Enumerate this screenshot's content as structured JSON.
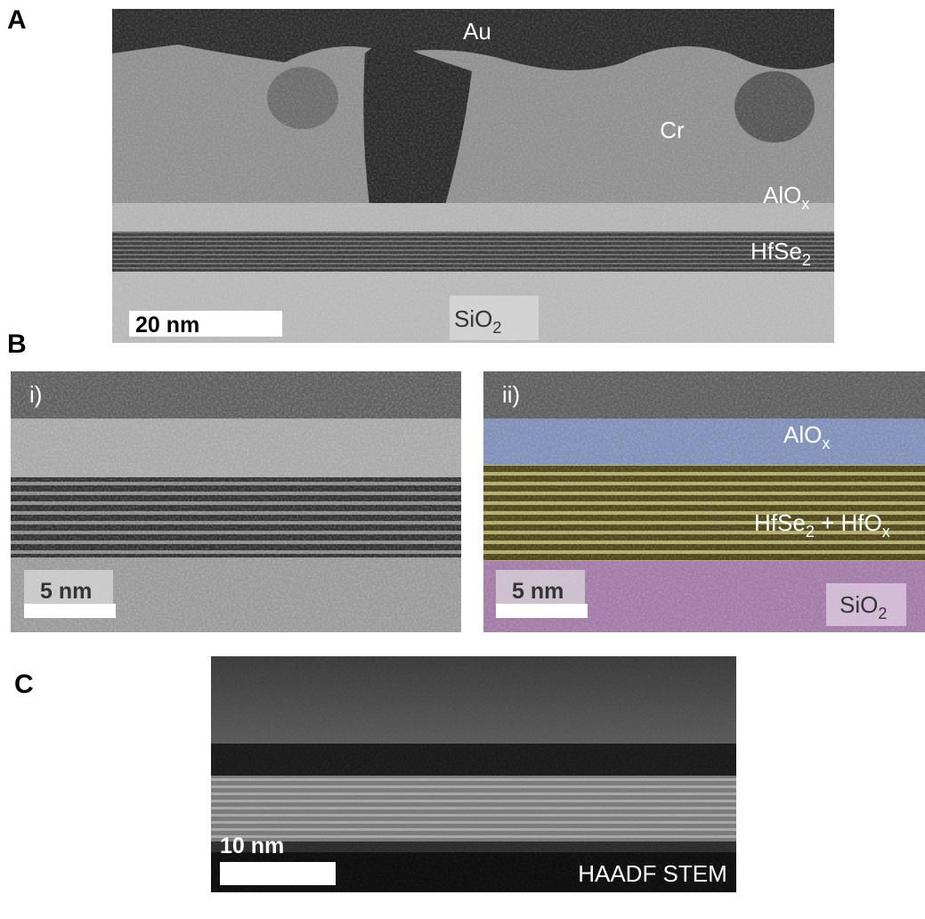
{
  "panel_a": {
    "label": "A",
    "au": "Au",
    "cr": "Cr",
    "alox": {
      "main": "AlO",
      "sub": "x"
    },
    "hfse2": {
      "main": "HfSe",
      "sub": "2"
    },
    "sio2": {
      "main": "SiO",
      "sub": "2"
    },
    "scale_bar": "20 nm"
  },
  "panel_b": {
    "label": "B",
    "i": {
      "label": "i)",
      "scale_bar": "5 nm"
    },
    "ii": {
      "label": "ii)",
      "alox": {
        "main": "AlO",
        "sub": "x"
      },
      "hfse2_hfox": {
        "main": "HfSe",
        "sub": "2",
        "main2": " + HfO",
        "sub2": "x"
      },
      "sio2": {
        "main": "SiO",
        "sub": "2"
      },
      "scale_bar": "5 nm"
    }
  },
  "panel_c": {
    "label": "C",
    "scale_bar": "10 nm",
    "mode": "HAADF STEM"
  }
}
